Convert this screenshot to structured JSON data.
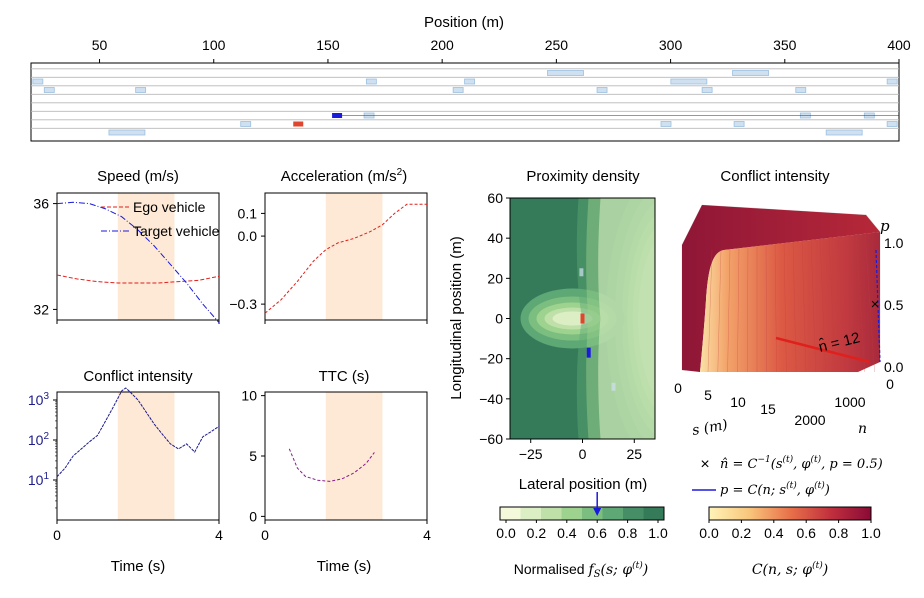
{
  "road_plot": {
    "xlabel": "Position (m)",
    "x_ticks": [
      50,
      100,
      150,
      200,
      250,
      300,
      350,
      400
    ],
    "xlim": [
      20,
      400
    ],
    "lanes": 8,
    "ego_vehicle": {
      "x": 137,
      "lane": 6,
      "color": "#e0452e"
    },
    "target_vehicle": {
      "x": 154,
      "lane": 5,
      "color": "#1a1adc"
    },
    "target_trail_end": 400,
    "background_vehicles": [
      {
        "x": 23,
        "lane": 1
      },
      {
        "x": 28,
        "lane": 2
      },
      {
        "x": 68,
        "lane": 2
      },
      {
        "x": 169,
        "lane": 1
      },
      {
        "x": 207,
        "lane": 2
      },
      {
        "x": 212,
        "lane": 1
      },
      {
        "x": 254,
        "lane": 0
      },
      {
        "x": 270,
        "lane": 2
      },
      {
        "x": 308,
        "lane": 1
      },
      {
        "x": 335,
        "lane": 0
      },
      {
        "x": 316,
        "lane": 2
      },
      {
        "x": 357,
        "lane": 2
      },
      {
        "x": 397,
        "lane": 1
      },
      {
        "x": 62,
        "lane": 7
      },
      {
        "x": 114,
        "lane": 6
      },
      {
        "x": 168,
        "lane": 5
      },
      {
        "x": 298,
        "lane": 6
      },
      {
        "x": 330,
        "lane": 6
      },
      {
        "x": 359,
        "lane": 5
      },
      {
        "x": 376,
        "lane": 7
      },
      {
        "x": 387,
        "lane": 5
      },
      {
        "x": 397,
        "lane": 6
      }
    ]
  },
  "chart_data": [
    {
      "type": "line",
      "title": "Speed (m/s)",
      "xlim": [
        0,
        4
      ],
      "ylim": [
        31.6,
        36.4
      ],
      "y_ticks": [
        32,
        36
      ],
      "highlight": [
        1.5,
        2.9
      ],
      "series": [
        {
          "name": "Ego vehicle",
          "color": "#e0201c",
          "dash": "4,2",
          "x": [
            0,
            0.5,
            1.0,
            1.5,
            2.0,
            2.5,
            3.0,
            3.5,
            4.0
          ],
          "y": [
            33.3,
            33.15,
            33.05,
            33.0,
            33.0,
            33.0,
            33.05,
            33.1,
            33.25
          ]
        },
        {
          "name": "Target vehicle",
          "color": "#1a1adc",
          "dash": "6,2,1,2",
          "x": [
            0,
            0.4,
            0.8,
            1.2,
            1.6,
            2.0,
            2.4,
            2.8,
            3.2,
            3.6,
            4.0
          ],
          "y": [
            36.0,
            36.05,
            36.0,
            35.8,
            35.5,
            35.0,
            34.4,
            33.7,
            33.0,
            32.2,
            31.5
          ]
        }
      ]
    },
    {
      "type": "line",
      "title": "Acceleration (m/s",
      "title_sup": "2",
      "title_end": ")",
      "xlim": [
        0,
        4
      ],
      "ylim": [
        -0.37,
        0.19
      ],
      "y_ticks": [
        -0.3,
        0.0,
        0.1
      ],
      "y_tick_labels": [
        "−0.3",
        "0.0",
        "0.1"
      ],
      "highlight": [
        1.5,
        2.9
      ],
      "series": [
        {
          "color": "#e0201c",
          "dash": "3,2",
          "x": [
            0,
            0.4,
            0.8,
            1.2,
            1.5,
            1.8,
            2.2,
            2.6,
            2.9,
            3.2,
            3.5,
            3.8,
            4.0
          ],
          "y": [
            -0.34,
            -0.28,
            -0.2,
            -0.11,
            -0.06,
            -0.03,
            -0.01,
            0.02,
            0.05,
            0.1,
            0.14,
            0.14,
            0.14
          ]
        }
      ]
    },
    {
      "type": "line",
      "title": "Conflict intensity",
      "xlim": [
        0,
        4
      ],
      "ylim_log10": [
        0,
        3.2
      ],
      "y_ticks_log10": [
        1,
        2,
        3
      ],
      "y_tick_bases": [
        "10",
        "10",
        "10"
      ],
      "y_tick_exps": [
        "1",
        "2",
        "3"
      ],
      "tick_color": "#1c1c8c",
      "x_ticks": [
        0,
        4
      ],
      "xlabel": "Time (s)",
      "highlight": [
        1.5,
        2.9
      ],
      "series": [
        {
          "color": "#1c1c8c",
          "dash": "3,1",
          "x": [
            0,
            0.2,
            0.4,
            0.6,
            0.8,
            1.0,
            1.2,
            1.4,
            1.6,
            1.7,
            1.8,
            2.0,
            2.2,
            2.4,
            2.6,
            2.8,
            3.0,
            3.2,
            3.4,
            3.6,
            3.8,
            4.0
          ],
          "y": [
            12,
            20,
            40,
            60,
            90,
            130,
            300,
            700,
            1700,
            2000,
            1600,
            1000,
            500,
            250,
            140,
            80,
            60,
            80,
            50,
            120,
            160,
            220
          ]
        }
      ]
    },
    {
      "type": "line",
      "title": "TTC (s)",
      "xlim": [
        0,
        4
      ],
      "ylim": [
        -0.3,
        10.3
      ],
      "y_ticks": [
        0,
        5,
        10
      ],
      "tick_color": "#8b1a8b",
      "x_ticks": [
        0,
        4
      ],
      "xlabel": "Time (s)",
      "highlight": [
        1.5,
        2.9
      ],
      "series": [
        {
          "color": "#8b1a8b",
          "dash": "3,2",
          "x": [
            0.6,
            0.8,
            1.0,
            1.3,
            1.6,
            1.9,
            2.2,
            2.5,
            2.7
          ],
          "y": [
            5.6,
            4.0,
            3.3,
            3.0,
            2.9,
            3.1,
            3.6,
            4.4,
            5.3
          ]
        }
      ]
    },
    {
      "type": "heatmap",
      "title": "Proximity density",
      "xlabel": "Lateral position (m)",
      "ylabel": "Longitudinal position (m)",
      "xlim": [
        -35,
        35
      ],
      "ylim": [
        -60,
        60
      ],
      "x_ticks": [
        -25,
        0,
        25
      ],
      "x_tick_labels": [
        "−25",
        "0",
        "25"
      ],
      "y_ticks": [
        -60,
        -40,
        -20,
        0,
        20,
        40,
        60
      ],
      "y_tick_labels": [
        "−60",
        "−40",
        "−20",
        "0",
        "20",
        "40",
        "60"
      ],
      "colorbar": {
        "ticks": [
          "0.0",
          "0.2",
          "0.4",
          "0.6",
          "0.8",
          "1.0"
        ],
        "label": "Normalised ",
        "label_math": "f",
        "label_sub": "S",
        "label_math_end": "(s; φ",
        "label_sup": "(t)",
        "label_close": ")",
        "arrow_value": 0.6
      }
    },
    {
      "type": "surface",
      "title": "Conflict intensity",
      "z_label": "p",
      "s_label": "s (m)",
      "n_label": "n",
      "z_ticks": [
        "0.0",
        "0.5",
        "1.0"
      ],
      "s_ticks": [
        "0",
        "5",
        "10",
        "15"
      ],
      "n_ticks": [
        "2000",
        "1000",
        "0"
      ],
      "annotation": "n̂ = 12",
      "colorbar": {
        "ticks": [
          "0.0",
          "0.2",
          "0.4",
          "0.6",
          "0.8",
          "1.0"
        ],
        "label": "C(n, s; φ",
        "label_sup": "(t)",
        "label_close": ")"
      },
      "legend": [
        {
          "marker": "×",
          "color": "#1a1adc",
          "text": "n̂ = C",
          "sup": "−1",
          "rest": "(s",
          "sup2": "(t)",
          "rest2": ", φ",
          "sup3": "(t)",
          "rest3": ", p = 0.5)"
        },
        {
          "marker": "line",
          "color": "#1a1adc",
          "text": "p = C(n; s",
          "sup2": "(t)",
          "rest2": ", φ",
          "sup3": "(t)",
          "rest3": ")"
        }
      ]
    }
  ]
}
